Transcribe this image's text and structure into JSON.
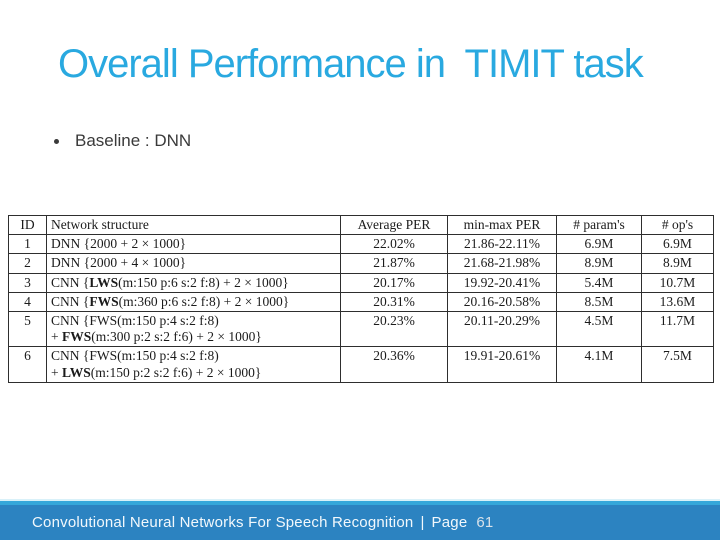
{
  "slide": {
    "title": "Overall Performance in  TIMIT task",
    "bullet": "Baseline : DNN"
  },
  "table": {
    "headers": [
      "ID",
      "Network structure",
      "Average PER",
      "min-max PER",
      "# param's",
      "# op's"
    ],
    "rows": [
      {
        "id": "1",
        "structure_lines": [
          [
            {
              "t": "DNN {2000 + 2 × 1000}",
              "b": false
            }
          ]
        ],
        "avg_per": "22.02%",
        "minmax_per": "21.86-22.11%",
        "params": "6.9M",
        "ops": "6.9M"
      },
      {
        "id": "2",
        "structure_lines": [
          [
            {
              "t": "DNN {2000 + 4 × 1000}",
              "b": false
            }
          ]
        ],
        "avg_per": "21.87%",
        "minmax_per": "21.68-21.98%",
        "params": "8.9M",
        "ops": "8.9M"
      },
      {
        "id": "3",
        "structure_lines": [
          [
            {
              "t": "CNN {",
              "b": false
            },
            {
              "t": "LWS",
              "b": true
            },
            {
              "t": "(m:150 p:6 s:2 f:8) + 2 × 1000}",
              "b": false
            }
          ]
        ],
        "avg_per": "20.17%",
        "minmax_per": "19.92-20.41%",
        "params": "5.4M",
        "ops": "10.7M"
      },
      {
        "id": "4",
        "structure_lines": [
          [
            {
              "t": "CNN {",
              "b": false
            },
            {
              "t": "FWS",
              "b": true
            },
            {
              "t": "(m:360 p:6 s:2 f:8) + 2 × 1000}",
              "b": false
            }
          ]
        ],
        "avg_per": "20.31%",
        "minmax_per": "20.16-20.58%",
        "params": "8.5M",
        "ops": "13.6M"
      },
      {
        "id": "5",
        "structure_lines": [
          [
            {
              "t": "CNN {FWS(m:150 p:4 s:2 f:8)",
              "b": false
            }
          ],
          [
            {
              "t": "+ ",
              "b": false
            },
            {
              "t": "FWS",
              "b": true
            },
            {
              "t": "(m:300 p:2 s:2 f:6) + 2 × 1000}",
              "b": false
            }
          ]
        ],
        "avg_per": "20.23%",
        "minmax_per": "20.11-20.29%",
        "params": "4.5M",
        "ops": "11.7M"
      },
      {
        "id": "6",
        "structure_lines": [
          [
            {
              "t": "CNN {FWS(m:150 p:4 s:2 f:8)",
              "b": false
            }
          ],
          [
            {
              "t": "+ ",
              "b": false
            },
            {
              "t": "LWS",
              "b": true
            },
            {
              "t": "(m:150 p:2 s:2 f:6) + 2 × 1000}",
              "b": false
            }
          ]
        ],
        "avg_per": "20.36%",
        "minmax_per": "19.91-20.61%",
        "params": "4.1M",
        "ops": "7.5M"
      }
    ]
  },
  "footer": {
    "text": "Convolutional Neural Networks For Speech Recognition",
    "separator": "|",
    "page_label": "Page",
    "page_number": "61"
  },
  "colors": {
    "title_blue": "#29A9E0",
    "footer_bar": "#2C83C1",
    "footer_strip": "#35A7DA",
    "footer_strip_light": "#D9F1F9",
    "body_text": "#3A3A3A",
    "table_text": "#1B1B1B",
    "table_border": "#2E2E2E"
  }
}
